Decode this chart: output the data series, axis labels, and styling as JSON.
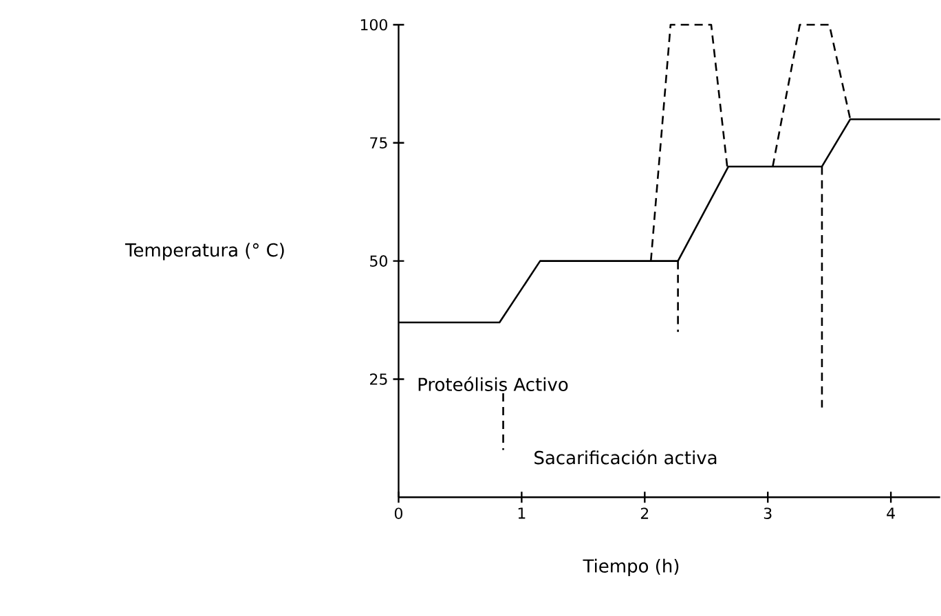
{
  "chart_data": {
    "type": "line",
    "xlabel": "Tiempo (h)",
    "ylabel": "Temperatura (° C)",
    "xlim": [
      0,
      4.4
    ],
    "ylim": [
      0,
      100
    ],
    "xticks": [
      0,
      1,
      2,
      3,
      4
    ],
    "yticks": [
      25,
      50,
      75,
      100
    ],
    "annotations": [
      "Proteólisis Activo",
      "Sacarificación activa"
    ],
    "marker": "none",
    "series": [
      {
        "color": "#000000",
        "line_style": "solid",
        "x": [
          0,
          0.82,
          1.15,
          2.27,
          2.68,
          3.44,
          3.67,
          4.4
        ],
        "values": [
          37,
          37,
          50,
          50,
          70,
          70,
          80,
          80
        ]
      },
      {
        "color": "#000000",
        "line_style": "dashed",
        "x": [
          2.05,
          2.21,
          2.54,
          2.67
        ],
        "values": [
          50,
          100,
          100,
          70
        ]
      },
      {
        "color": "#000000",
        "line_style": "dashed",
        "x": [
          3.04,
          3.26,
          3.5,
          3.67
        ],
        "values": [
          70,
          100,
          100,
          80
        ]
      },
      {
        "color": "#000000",
        "line_style": "dashed",
        "x": [
          0.85,
          0.85
        ],
        "values": [
          22,
          10
        ]
      },
      {
        "color": "#000000",
        "line_style": "dashed",
        "x": [
          2.27,
          2.27
        ],
        "values": [
          50,
          35
        ]
      },
      {
        "color": "#000000",
        "line_style": "dashed",
        "x": [
          3.44,
          3.44
        ],
        "values": [
          70,
          19
        ]
      }
    ]
  }
}
